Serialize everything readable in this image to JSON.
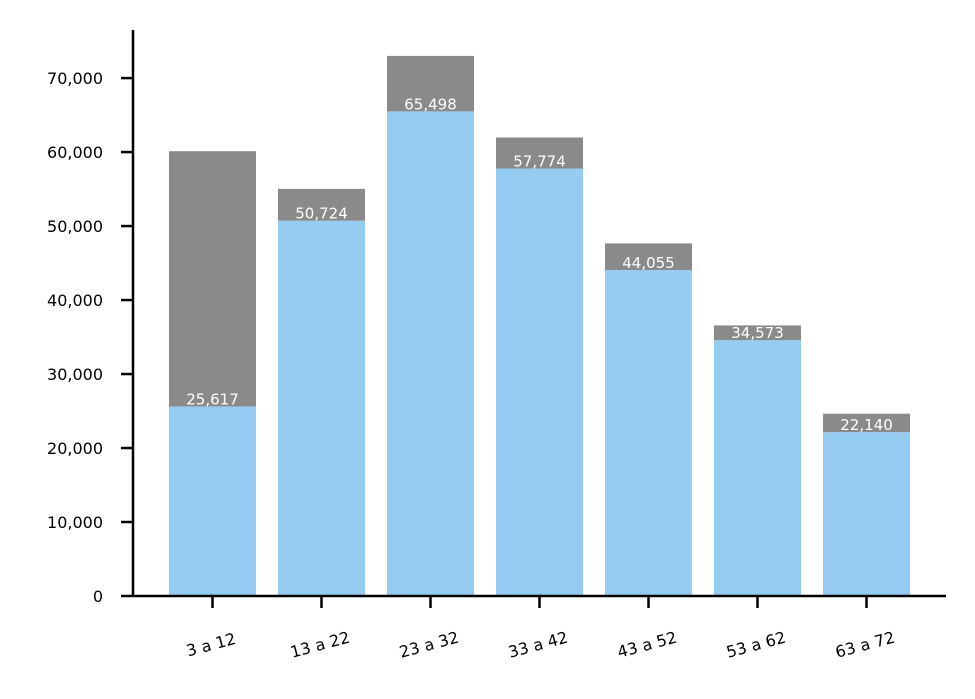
{
  "chart_data": {
    "type": "bar",
    "stacked": true,
    "categories": [
      "3 a 12",
      "13 a 22",
      "23 a 32",
      "33 a 42",
      "43 a 52",
      "53 a 62",
      "63 a 72"
    ],
    "series": [
      {
        "values": [
          25617,
          50724,
          65498,
          57774,
          44055,
          34573,
          22140
        ],
        "color": "#97CCF2",
        "labels": [
          "25,617",
          "50,724",
          "65,498",
          "57,774",
          "44,055",
          "34,573",
          "22,140"
        ]
      },
      {
        "values": [
          34500,
          4300,
          7500,
          4200,
          3600,
          2000,
          2500
        ],
        "color": "#8A8A8A"
      }
    ],
    "ylim": [
      0,
      76500
    ],
    "yticks": [
      0,
      10000,
      20000,
      30000,
      40000,
      50000,
      60000,
      70000
    ],
    "ytick_labels": [
      "0",
      "10,000",
      "20,000",
      "30,000",
      "40,000",
      "50,000",
      "60,000",
      "70,000"
    ],
    "xtick_rotation": -15,
    "grid": false,
    "label_color": "#ffffff",
    "axis_color": "#000000"
  }
}
